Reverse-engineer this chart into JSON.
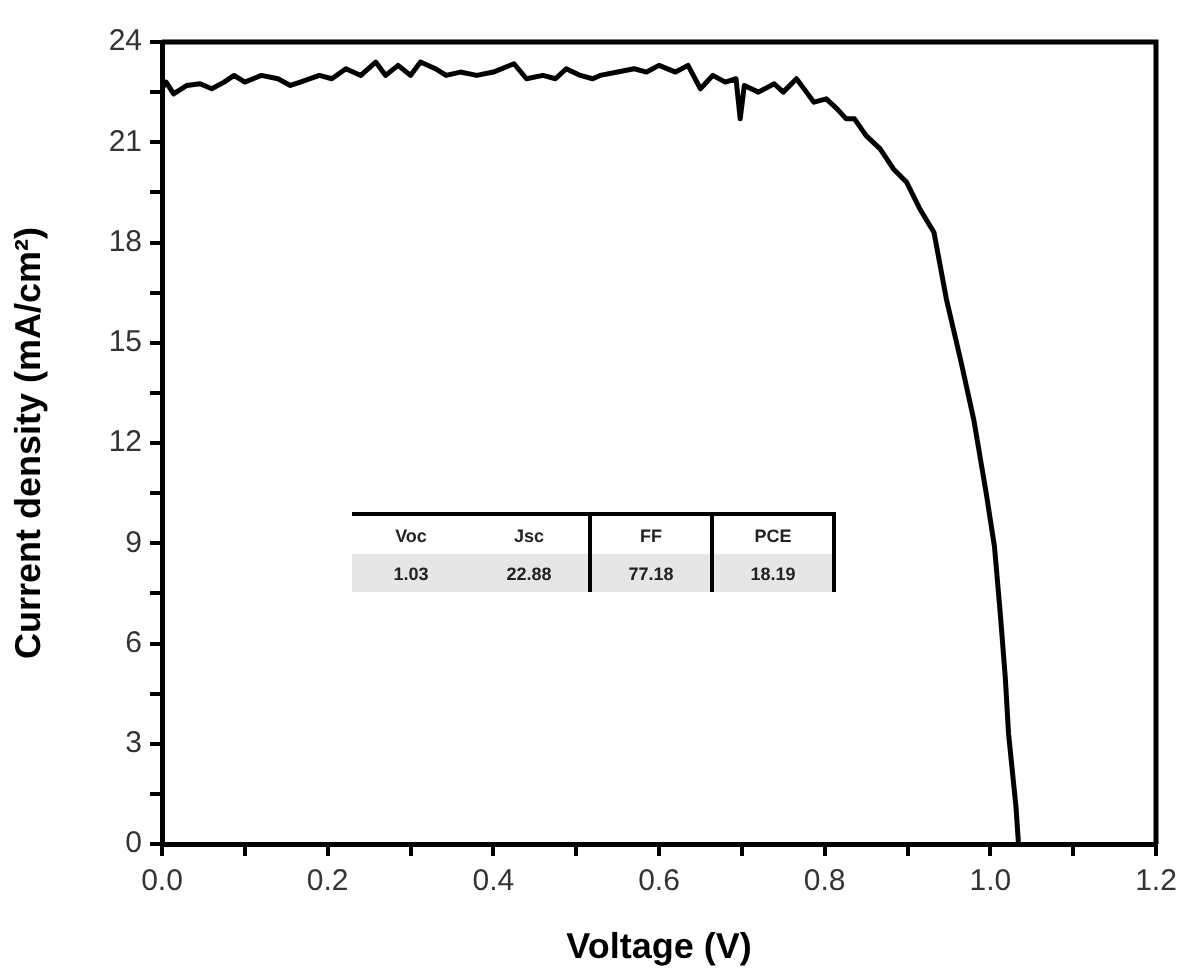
{
  "chart_data": {
    "type": "line",
    "xlabel": "Voltage (V)",
    "ylabel": "Current density (mA/cm²)",
    "x": [
      0,
      0.005,
      0.014,
      0.03,
      0.046,
      0.06,
      0.075,
      0.087,
      0.1,
      0.12,
      0.14,
      0.155,
      0.167,
      0.19,
      0.205,
      0.222,
      0.24,
      0.258,
      0.27,
      0.285,
      0.3,
      0.312,
      0.33,
      0.343,
      0.36,
      0.38,
      0.4,
      0.425,
      0.44,
      0.46,
      0.475,
      0.488,
      0.505,
      0.52,
      0.529,
      0.55,
      0.57,
      0.585,
      0.6,
      0.62,
      0.635,
      0.65,
      0.665,
      0.68,
      0.693,
      0.698,
      0.703,
      0.72,
      0.739,
      0.75,
      0.766,
      0.778,
      0.787,
      0.802,
      0.815,
      0.826,
      0.836,
      0.85,
      0.867,
      0.883,
      0.899,
      0.915,
      0.932,
      0.935,
      0.947,
      0.964,
      0.98,
      0.995,
      1.005,
      1.012,
      1.018,
      1.022,
      1.031,
      1.034
    ],
    "series": [
      {
        "color": "#000000",
        "values": [
          22.6,
          22.8,
          22.45,
          22.7,
          22.75,
          22.6,
          22.8,
          23.0,
          22.8,
          23.0,
          22.9,
          22.7,
          22.8,
          23.0,
          22.9,
          23.2,
          23.0,
          23.4,
          23.0,
          23.3,
          23.0,
          23.4,
          23.2,
          23.0,
          23.1,
          23.0,
          23.1,
          23.35,
          22.9,
          23.0,
          22.9,
          23.2,
          23.0,
          22.9,
          23.0,
          23.1,
          23.2,
          23.1,
          23.3,
          23.1,
          23.3,
          22.6,
          23.0,
          22.8,
          22.9,
          21.7,
          22.7,
          22.5,
          22.75,
          22.5,
          22.9,
          22.5,
          22.2,
          22.3,
          22.0,
          21.7,
          21.7,
          21.2,
          20.8,
          20.2,
          19.8,
          19.0,
          18.3,
          17.9,
          16.3,
          14.5,
          12.7,
          10.5,
          8.9,
          6.9,
          5.0,
          3.3,
          1.1,
          0
        ]
      }
    ],
    "xlim": [
      0,
      1.2
    ],
    "ylim": [
      0,
      24
    ],
    "xticks": [
      {
        "value": 0,
        "label": "0.0"
      },
      {
        "value": 0.1,
        "label": null
      },
      {
        "value": 0.2,
        "label": "0.2"
      },
      {
        "value": 0.3,
        "label": null
      },
      {
        "value": 0.4,
        "label": "0.4"
      },
      {
        "value": 0.5,
        "label": null
      },
      {
        "value": 0.6,
        "label": "0.6"
      },
      {
        "value": 0.7,
        "label": null
      },
      {
        "value": 0.8,
        "label": "0.8"
      },
      {
        "value": 0.9,
        "label": null
      },
      {
        "value": 1.0,
        "label": "1.0"
      },
      {
        "value": 1.1,
        "label": null
      },
      {
        "value": 1.2,
        "label": "1.2"
      }
    ],
    "yticks": [
      0,
      {
        "value": 1.5,
        "label": null
      },
      3,
      {
        "value": 4.5,
        "label": null
      },
      6,
      {
        "value": 7.5,
        "label": null
      },
      9,
      {
        "value": 10.5,
        "label": null
      },
      12,
      {
        "value": 13.5,
        "label": null
      },
      15,
      {
        "value": 16.5,
        "label": null
      },
      18,
      {
        "value": 19.5,
        "label": null
      },
      21,
      {
        "value": 22.5,
        "label": null
      },
      24
    ],
    "grid": false,
    "legend": false,
    "marker": "none",
    "line_style": "solid",
    "annotations": [
      "Voc",
      "Jsc",
      "FF",
      "PCE",
      "1.03",
      "22.88",
      "77.18",
      "18.19"
    ]
  }
}
